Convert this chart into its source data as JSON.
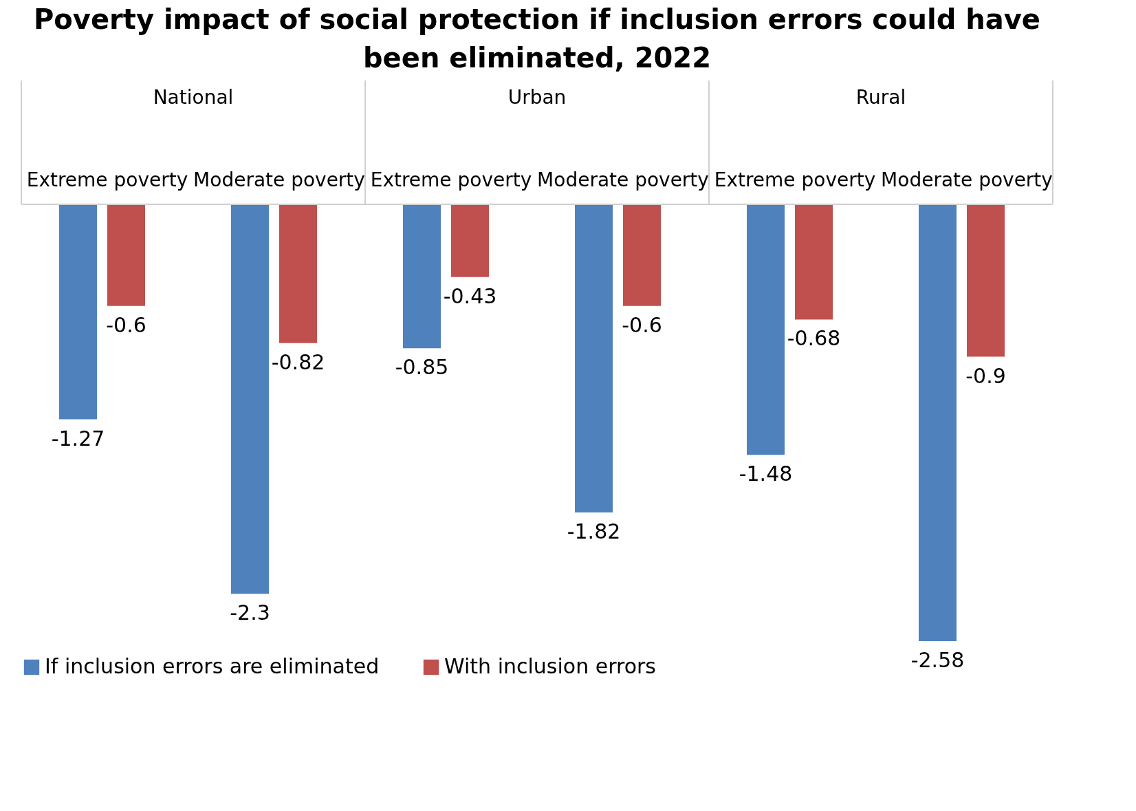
{
  "chart_data": {
    "type": "bar",
    "title": "Poverty impact of social protection if inclusion errors could have been eliminated, 2022",
    "categories": [
      "Extreme poverty",
      "Moderate poverty",
      "Extreme poverty",
      "Moderate poverty",
      "Extreme poverty",
      "Moderate poverty"
    ],
    "annotations": [
      "National",
      "Urban",
      "Rural"
    ],
    "series": [
      {
        "name": "If inclusion errors are eliminated",
        "color": "#4f81bd",
        "values": [
          -1.27,
          -2.3,
          -0.85,
          -1.82,
          -1.48,
          -2.58
        ]
      },
      {
        "name": "With inclusion errors",
        "color": "#c0504d",
        "values": [
          -0.6,
          -0.82,
          -0.43,
          -0.6,
          -0.68,
          -0.9
        ]
      }
    ],
    "data_labels": true,
    "legend": "bottom"
  }
}
